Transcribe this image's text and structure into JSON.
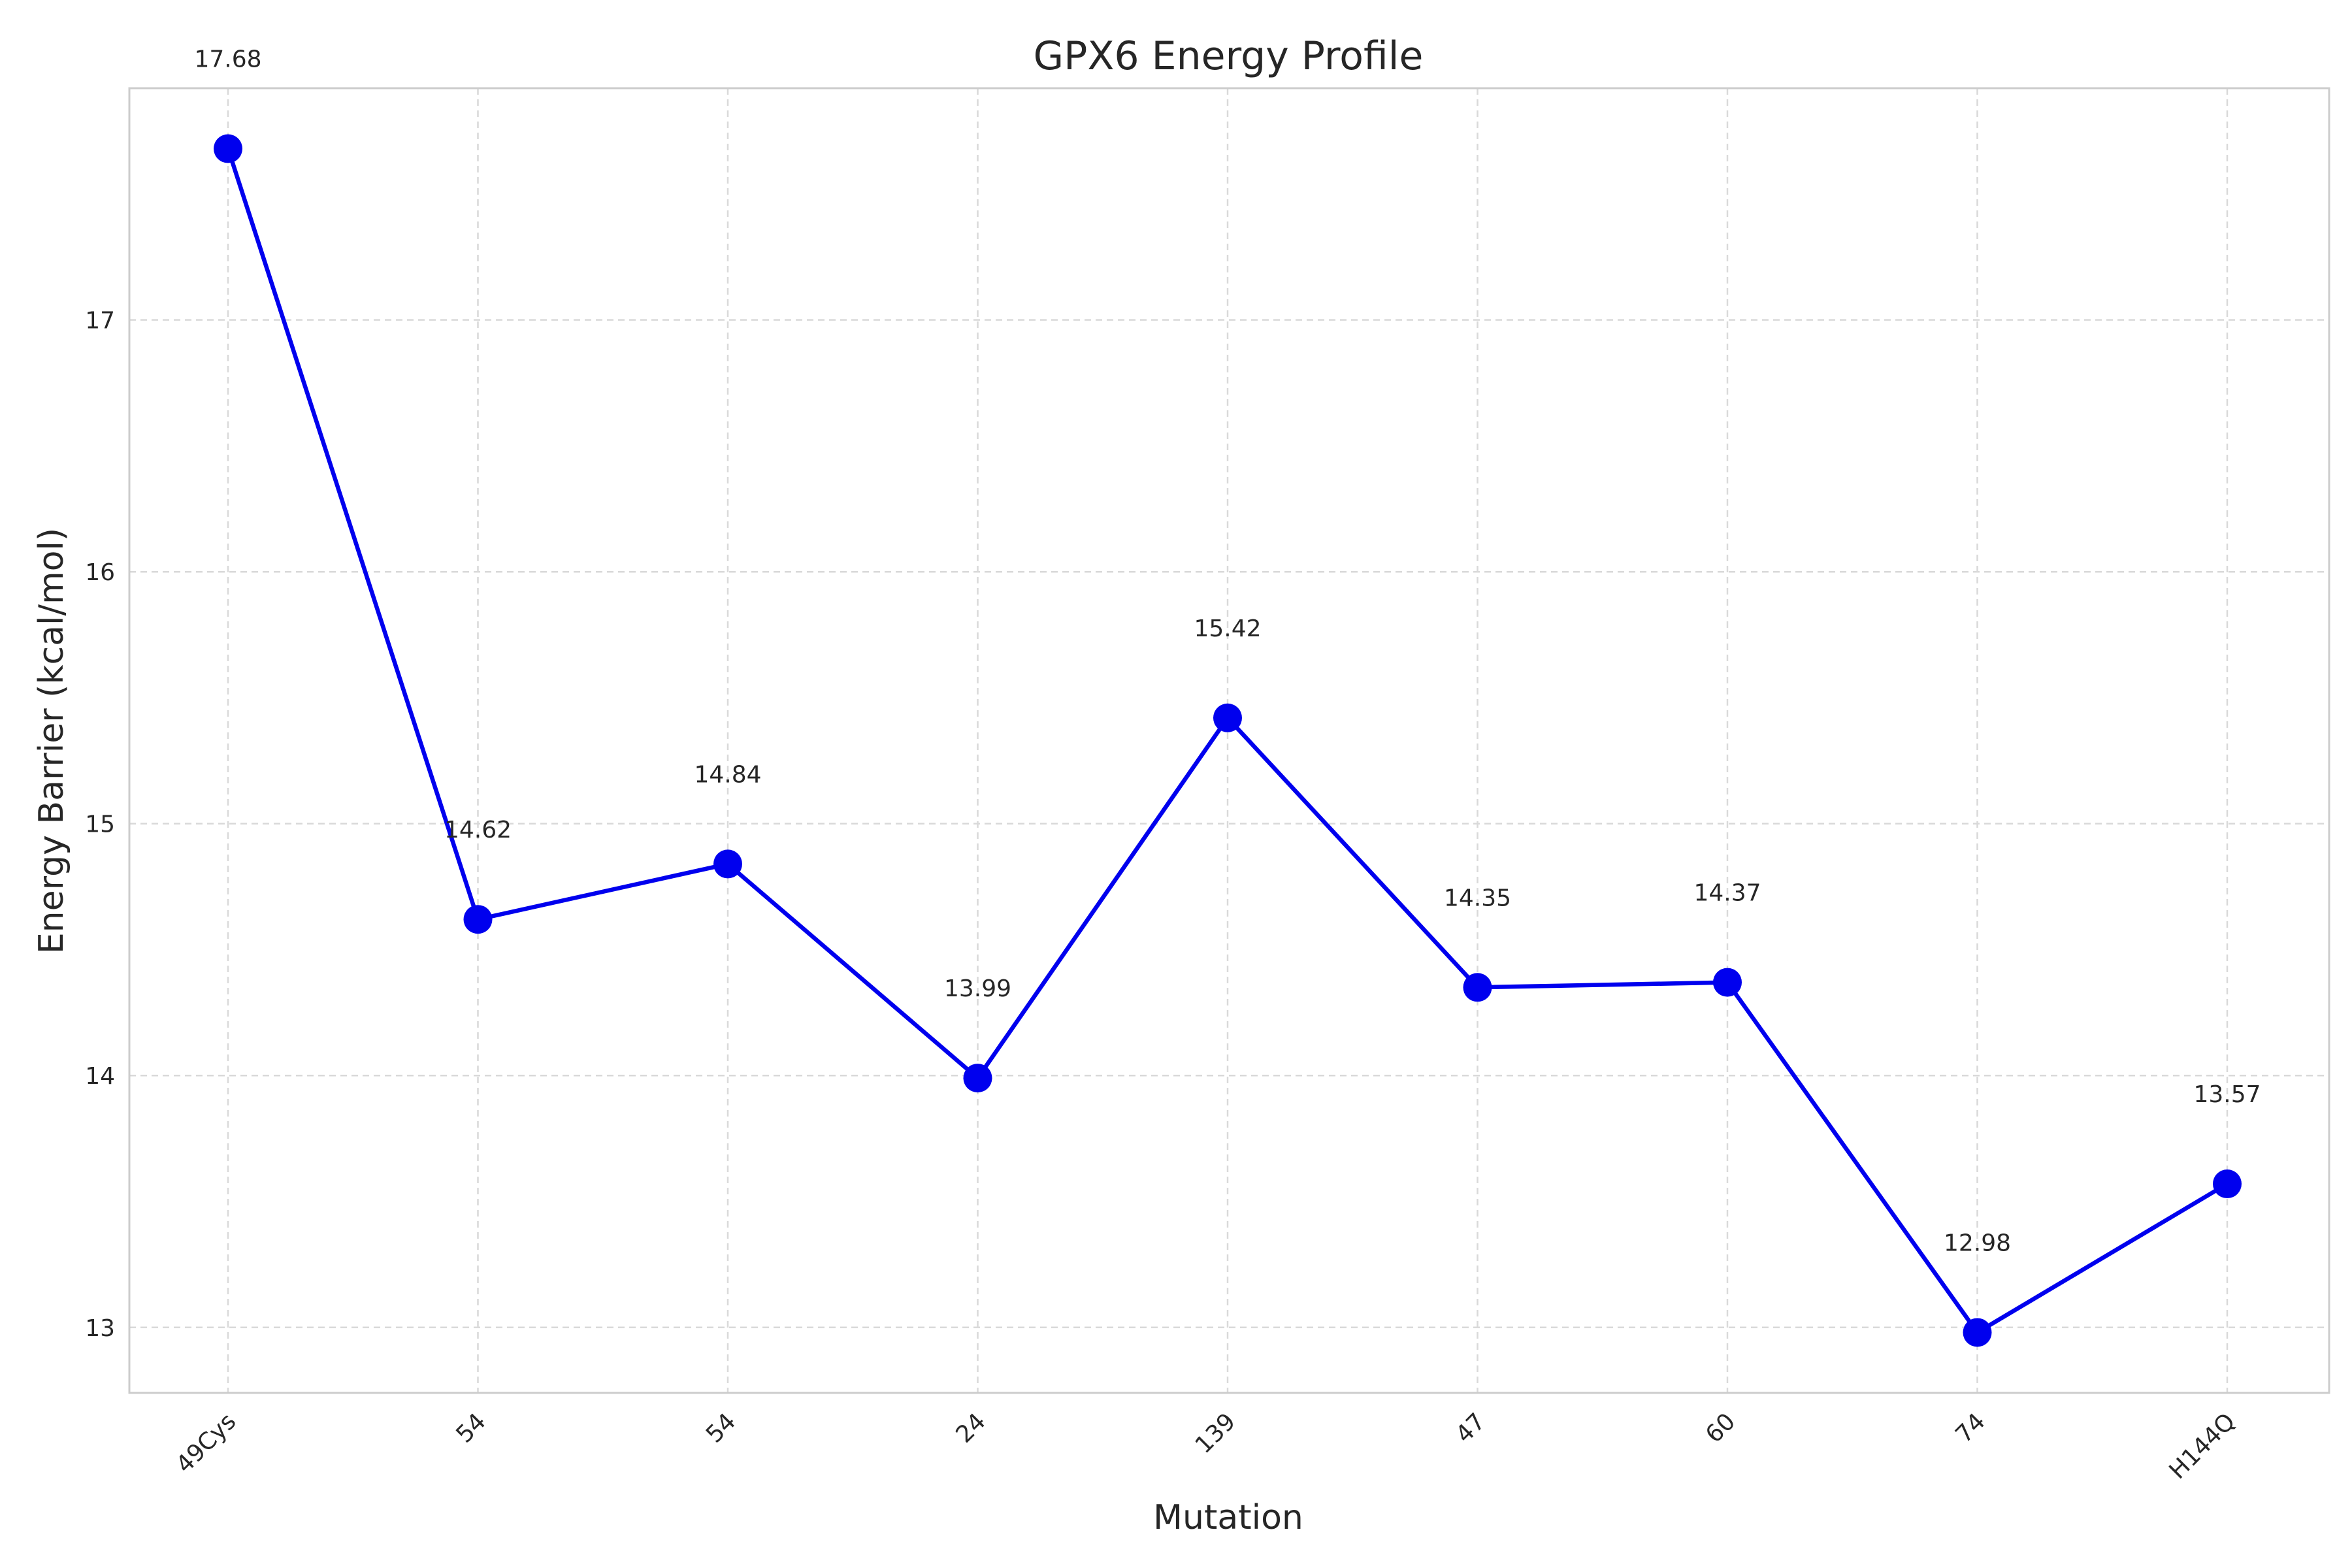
{
  "chart_data": {
    "type": "line",
    "title": "GPX6 Energy Profile",
    "xlabel": "Mutation",
    "ylabel": "Energy Barrier (kcal/mol)",
    "categories": [
      "49Cys",
      "54",
      "54",
      "24",
      "139",
      "47",
      "60",
      "74",
      "H144Q"
    ],
    "values": [
      17.68,
      14.62,
      14.84,
      13.99,
      15.42,
      14.35,
      14.37,
      12.98,
      13.57
    ],
    "data_labels": [
      "17.68",
      "14.62",
      "14.84",
      "13.99",
      "15.42",
      "14.35",
      "14.37",
      "12.98",
      "13.57"
    ],
    "yticks": [
      13,
      14,
      15,
      16,
      17
    ],
    "ylim": [
      12.74,
      17.92
    ],
    "grid": true,
    "line_color": "#0000ee",
    "marker_color": "#0000ee",
    "x_tick_rotation": "45deg"
  }
}
